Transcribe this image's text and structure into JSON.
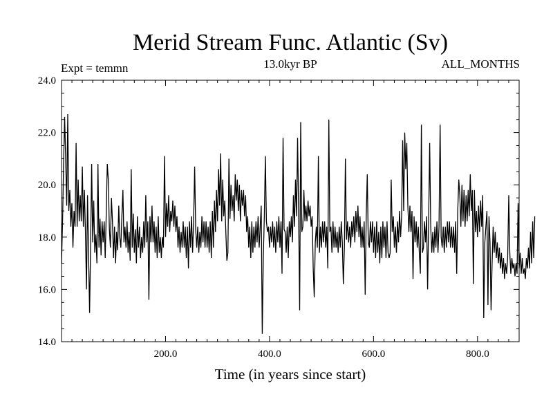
{
  "chart_data": {
    "type": "line",
    "title": "Merid Stream Func. Atlantic (Sv)",
    "subtitle": "13.0kyr BP",
    "left_label": "Expt = temmn",
    "right_label": "ALL_MONTHS",
    "xlabel": "Time (in years since start)",
    "ylabel": "",
    "xlim": [
      0,
      880
    ],
    "ylim": [
      14.0,
      24.0
    ],
    "xticks": [
      200,
      400,
      600,
      800
    ],
    "xtick_labels": [
      "200.0",
      "400.0",
      "600.0",
      "800.0"
    ],
    "yticks": [
      14,
      16,
      18,
      20,
      22,
      24
    ],
    "ytick_labels": [
      "14.0",
      "16.0",
      "18.0",
      "20.0",
      "22.0",
      "24.0"
    ],
    "grid": false,
    "line_color": "#000000",
    "series": [
      {
        "x_start": 0,
        "x_step": 2,
        "values": [
          17.0,
          18.6,
          20.8,
          22.6,
          21.0,
          19.2,
          22.7,
          19.0,
          19.8,
          18.4,
          19.3,
          17.6,
          19.0,
          18.4,
          21.6,
          18.4,
          20.2,
          18.6,
          19.6,
          18.6,
          20.7,
          18.4,
          19.8,
          18.2,
          16.0,
          19.6,
          17.4,
          15.1,
          17.7,
          20.8,
          17.8,
          19.4,
          17.4,
          18.1,
          17.0,
          20.8,
          17.6,
          18.7,
          17.3,
          18.6,
          17.8,
          18.6,
          17.2,
          19.4,
          18.0,
          20.2,
          18.3,
          17.6,
          19.5,
          18.6,
          17.2,
          18.4,
          17.0,
          18.2,
          17.5,
          19.2,
          18.0,
          17.6,
          18.8,
          19.8,
          17.8,
          18.4,
          17.6,
          18.6,
          17.4,
          18.2,
          17.1,
          19.4,
          17.6,
          18.9,
          17.4,
          18.3,
          17.0,
          18.8,
          17.6,
          18.4,
          17.2,
          18.0,
          17.4,
          18.6,
          17.6,
          19.6,
          17.8,
          18.6,
          17.4,
          18.8,
          17.8,
          19.2,
          17.8,
          18.6,
          17.4,
          18.4,
          17.6,
          18.8,
          17.4,
          18.0,
          17.2,
          18.0,
          17.6,
          18.8,
          18.0,
          21.0,
          18.4,
          19.6,
          18.2,
          19.0,
          18.6,
          19.4,
          18.4,
          19.2,
          18.2,
          18.8,
          17.6,
          18.4,
          17.4,
          18.2,
          17.6,
          18.6,
          17.6,
          18.4,
          17.2,
          18.4,
          16.8,
          18.6,
          17.6,
          18.8,
          17.4,
          18.6,
          17.2,
          18.8,
          17.6,
          18.4,
          17.4,
          18.2,
          17.6,
          18.8,
          17.8,
          18.6,
          17.6,
          18.6,
          17.6,
          18.4,
          17.4,
          18.6,
          17.2,
          19.0,
          17.6,
          19.4,
          18.2,
          19.8,
          18.6,
          20.6,
          19.2,
          21.2,
          18.6,
          20.2,
          18.8,
          19.4,
          18.2,
          19.2,
          17.4,
          19.6,
          18.4,
          20.0,
          19.0,
          19.6,
          18.6,
          20.4,
          19.4,
          20.2,
          19.0,
          20.0,
          18.6,
          19.8,
          19.2,
          19.8,
          18.8,
          19.6,
          18.2,
          18.8,
          17.6,
          18.4,
          17.2,
          18.6,
          17.4,
          18.4,
          17.6,
          18.6,
          17.8,
          18.8,
          17.6,
          18.4,
          17.4,
          18.4,
          17.6,
          18.8,
          17.6,
          18.6,
          17.4,
          18.4,
          17.6,
          18.4,
          17.8,
          18.6,
          17.6,
          18.4,
          17.4,
          18.6,
          17.8,
          18.8,
          17.6,
          18.6,
          17.4,
          18.2,
          17.0,
          18.2,
          17.4,
          18.4,
          17.2,
          18.6,
          18.0,
          18.8,
          17.8,
          19.6,
          18.4,
          20.2,
          18.8,
          21.8,
          19.0,
          19.6,
          18.8,
          19.4,
          18.4,
          19.8,
          18.6,
          19.2,
          18.6,
          19.4,
          18.8,
          19.2,
          18.4,
          18.8,
          17.6,
          18.6,
          17.8,
          18.4,
          17.6,
          18.6,
          17.4,
          18.4,
          17.6,
          18.6,
          17.8,
          18.6,
          17.6,
          18.4,
          17.6,
          18.8,
          17.6,
          18.4,
          17.4,
          18.6,
          17.6,
          18.4,
          17.6,
          18.2,
          17.4,
          18.4,
          17.6,
          18.6,
          17.8,
          18.6,
          17.6,
          18.4,
          17.4,
          18.6,
          17.8,
          18.4,
          17.6,
          18.6,
          18.0,
          18.8,
          17.8,
          19.0,
          18.2,
          19.2,
          18.0,
          18.8,
          17.6,
          18.4,
          17.6,
          18.6,
          17.8,
          18.8,
          17.6,
          18.4,
          17.6,
          18.6,
          17.8,
          18.6,
          17.4,
          18.4,
          17.2,
          18.6,
          17.4,
          18.2,
          17.0,
          18.4,
          17.2,
          18.6,
          17.6,
          18.4,
          17.2,
          18.6,
          17.4,
          18.2,
          17.4,
          18.4,
          17.6,
          18.8,
          17.6,
          18.4,
          17.4,
          18.6,
          17.8,
          19.0,
          18.0,
          18.8,
          17.6,
          18.6,
          17.6,
          18.8,
          17.8,
          19.0,
          18.2,
          19.2,
          18.4,
          19.0,
          18.2,
          18.8,
          17.8,
          18.6,
          17.6,
          18.4,
          17.4,
          18.6,
          17.6,
          18.4,
          17.6,
          18.6,
          17.8,
          18.8,
          17.8,
          18.6,
          17.6,
          18.4,
          17.4,
          18.2,
          17.4,
          18.4,
          17.6,
          18.6,
          17.4,
          18.4,
          17.6,
          18.6,
          17.6,
          18.4,
          17.4,
          18.4,
          17.6,
          18.6,
          17.8,
          18.6,
          17.6,
          18.4,
          17.6,
          18.4,
          17.4,
          18.6,
          17.8,
          19.0,
          18.2,
          19.6,
          18.4,
          20.0,
          18.6,
          19.8,
          18.4,
          19.6,
          18.6,
          19.8,
          18.8,
          20.4,
          19.0,
          19.8,
          18.6,
          19.4,
          18.2,
          19.0,
          18.0,
          19.2,
          18.2,
          19.4,
          18.4,
          19.6,
          18.6,
          19.2,
          18.4,
          19.0,
          18.0,
          18.8,
          17.8,
          18.6,
          17.6,
          18.4,
          17.4,
          18.2,
          17.2,
          17.8,
          17.0,
          17.6,
          16.8,
          17.4,
          16.6,
          17.2,
          16.4,
          17.0,
          16.6,
          17.2,
          16.8,
          17.4,
          16.6,
          17.2,
          16.8,
          17.0,
          16.4,
          17.0,
          16.6,
          17.2,
          16.8,
          17.4,
          16.6,
          17.2,
          16.6,
          16.8,
          16.4,
          17.2,
          16.8,
          17.6,
          16.8,
          18.2,
          17.0,
          18.6,
          17.2,
          18.8
        ]
      }
    ],
    "spikes": [
      {
        "x": 86,
        "y": 18.9
      },
      {
        "x": 88,
        "y": 20.8
      },
      {
        "x": 134,
        "y": 20.6
      },
      {
        "x": 168,
        "y": 15.6
      },
      {
        "x": 184,
        "y": 17.2
      },
      {
        "x": 198,
        "y": 21.1
      },
      {
        "x": 202,
        "y": 19.3
      },
      {
        "x": 256,
        "y": 20.7
      },
      {
        "x": 258,
        "y": 18.3
      },
      {
        "x": 318,
        "y": 17.1
      },
      {
        "x": 322,
        "y": 21.0
      },
      {
        "x": 324,
        "y": 18.7
      },
      {
        "x": 384,
        "y": 19.2
      },
      {
        "x": 386,
        "y": 14.3
      },
      {
        "x": 388,
        "y": 17.2
      },
      {
        "x": 392,
        "y": 21.1
      },
      {
        "x": 396,
        "y": 18.2
      },
      {
        "x": 424,
        "y": 16.6
      },
      {
        "x": 426,
        "y": 21.8
      },
      {
        "x": 428,
        "y": 18.3
      },
      {
        "x": 458,
        "y": 15.2
      },
      {
        "x": 460,
        "y": 22.4
      },
      {
        "x": 462,
        "y": 18.2
      },
      {
        "x": 484,
        "y": 16.8
      },
      {
        "x": 486,
        "y": 15.7
      },
      {
        "x": 494,
        "y": 21.1
      },
      {
        "x": 512,
        "y": 16.8
      },
      {
        "x": 514,
        "y": 22.5
      },
      {
        "x": 516,
        "y": 18.2
      },
      {
        "x": 542,
        "y": 16.2
      },
      {
        "x": 546,
        "y": 21.0
      },
      {
        "x": 548,
        "y": 17.9
      },
      {
        "x": 584,
        "y": 15.8
      },
      {
        "x": 588,
        "y": 20.4
      },
      {
        "x": 590,
        "y": 17.8
      },
      {
        "x": 630,
        "y": 17.2
      },
      {
        "x": 634,
        "y": 20.2
      },
      {
        "x": 636,
        "y": 18.2
      },
      {
        "x": 656,
        "y": 21.7
      },
      {
        "x": 658,
        "y": 19.0
      },
      {
        "x": 660,
        "y": 22.0
      },
      {
        "x": 662,
        "y": 20.6
      },
      {
        "x": 664,
        "y": 21.6
      },
      {
        "x": 666,
        "y": 19.2
      },
      {
        "x": 672,
        "y": 18.2
      },
      {
        "x": 676,
        "y": 16.4
      },
      {
        "x": 690,
        "y": 16.6
      },
      {
        "x": 692,
        "y": 22.3
      },
      {
        "x": 694,
        "y": 17.4
      },
      {
        "x": 704,
        "y": 16.0
      },
      {
        "x": 708,
        "y": 21.6
      },
      {
        "x": 728,
        "y": 22.3
      },
      {
        "x": 730,
        "y": 18.0
      },
      {
        "x": 760,
        "y": 16.6
      },
      {
        "x": 764,
        "y": 20.2
      },
      {
        "x": 792,
        "y": 16.2
      },
      {
        "x": 794,
        "y": 19.8
      },
      {
        "x": 812,
        "y": 14.9
      },
      {
        "x": 814,
        "y": 17.8
      },
      {
        "x": 820,
        "y": 15.4
      },
      {
        "x": 826,
        "y": 15.2
      },
      {
        "x": 828,
        "y": 17.0
      },
      {
        "x": 860,
        "y": 19.6
      },
      {
        "x": 872,
        "y": 16.5
      },
      {
        "x": 878,
        "y": 19.3
      }
    ]
  }
}
